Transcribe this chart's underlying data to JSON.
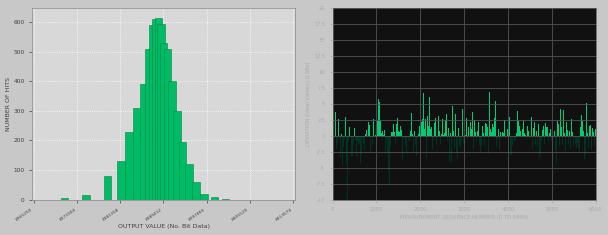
{
  "hist_bar_heights": [
    5,
    15,
    80,
    130,
    230,
    310,
    390,
    510,
    590,
    610,
    615,
    595,
    530,
    510,
    400,
    300,
    195,
    120,
    60,
    20,
    8,
    2
  ],
  "hist_bar_centers": [
    8371000,
    8375000,
    8379000,
    8381500,
    8383000,
    8384500,
    8385700,
    8386700,
    8387500,
    8388000,
    8388500,
    8389000,
    8389500,
    8390200,
    8391000,
    8392000,
    8393000,
    8394200,
    8395500,
    8397000,
    8399000,
    8401000
  ],
  "hist_bar_width": 1400,
  "hist_color": "#00bb66",
  "hist_edge_color": "#008844",
  "hist_xlabel": "OUTPUT VALUE (No. Bit Data)",
  "hist_ylabel": "NUMBER OF HITS",
  "hist_ylim": [
    0,
    650
  ],
  "hist_yticks": [
    0,
    100,
    200,
    300,
    400,
    500,
    600
  ],
  "hist_xlim": [
    8365000,
    8414000
  ],
  "hist_xtick_vals": [
    8365250,
    8373304,
    8381358,
    8389412,
    8397466,
    8405520,
    8413574
  ],
  "scatter_n": 6000,
  "scatter_ylim": [
    -10,
    20
  ],
  "scatter_yticks": [
    -10,
    -7.5,
    -5,
    -2.5,
    0,
    2.5,
    5,
    7.5,
    10,
    12.5,
    15,
    17.5,
    20
  ],
  "scatter_xlabel": "MEASUREMENT SEQUENCE NUMBER (0 TO 5999)",
  "scatter_ylabel": "DEVIATION (Ideal Values) [LSBs]",
  "scatter_green": "#00cc77",
  "scatter_black": "#000000",
  "scatter_xticks": [
    0,
    1000,
    2000,
    3000,
    4000,
    5000,
    6000
  ],
  "scatter_xlim": [
    0,
    6000
  ],
  "left_bg": "#d8d8d8",
  "right_bg": "#111111",
  "grid_color_left": "#ffffff",
  "grid_color_right": "#555555",
  "text_color": "#404040",
  "text_color_right": "#aaaaaa",
  "fig_bg": "#c8c8c8"
}
